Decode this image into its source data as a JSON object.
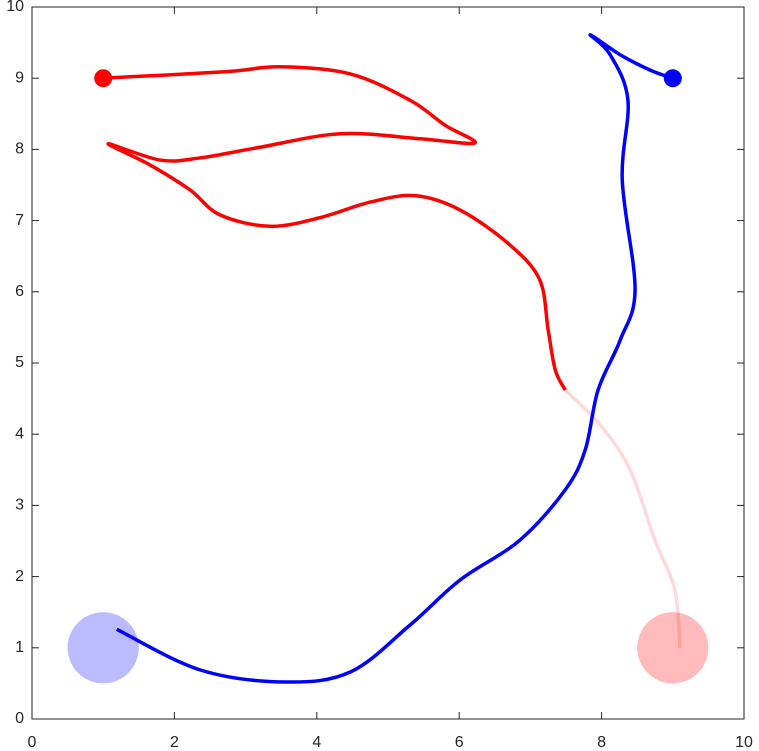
{
  "chart_data": {
    "type": "line",
    "xlim": [
      0,
      10
    ],
    "ylim": [
      0,
      10
    ],
    "xticks": [
      0,
      2,
      4,
      6,
      8,
      10
    ],
    "yticks": [
      0,
      1,
      2,
      3,
      4,
      5,
      6,
      7,
      8,
      9,
      10
    ],
    "series": [
      {
        "color": "#ff0000",
        "opacity": 1,
        "x": [
          0.97,
          2.71,
          3.48,
          4.47,
          5.31,
          5.8,
          6.22,
          5.45,
          4.33,
          3.2,
          2.36,
          1.8,
          1.07,
          1.66,
          2.22,
          2.64,
          3.34,
          4.04,
          4.75,
          5.38,
          6.01,
          6.71,
          7.13,
          7.25,
          7.35,
          7.49
        ],
        "y": [
          9.0,
          9.09,
          9.16,
          9.06,
          8.69,
          8.34,
          8.09,
          8.15,
          8.22,
          8.03,
          7.88,
          7.85,
          8.08,
          7.78,
          7.43,
          7.08,
          6.92,
          7.04,
          7.26,
          7.35,
          7.15,
          6.66,
          6.17,
          5.46,
          4.9,
          4.62
        ]
      },
      {
        "color": "#ff0000",
        "opacity": 0.15,
        "x": [
          7.49,
          7.98,
          8.4,
          8.75,
          9.03,
          9.1
        ],
        "y": [
          4.62,
          4.13,
          3.5,
          2.51,
          1.81,
          1.0
        ]
      },
      {
        "color": "#0000ff",
        "opacity": 1,
        "x": [
          9.0,
          8.69,
          8.26,
          7.84,
          8.12,
          8.37,
          8.29,
          8.47,
          8.26,
          7.95,
          7.77,
          7.49,
          6.85,
          6.01,
          5.31,
          4.47,
          3.55,
          2.36,
          1.19
        ],
        "y": [
          9.0,
          9.11,
          9.33,
          9.61,
          9.33,
          8.69,
          7.57,
          6.03,
          5.32,
          4.62,
          3.78,
          3.22,
          2.51,
          1.95,
          1.32,
          0.66,
          0.52,
          0.69,
          1.26
        ]
      }
    ],
    "markers": [
      {
        "x": 1,
        "y": 9,
        "color": "#ff0000"
      },
      {
        "x": 9,
        "y": 9,
        "color": "#0000ff"
      }
    ],
    "goals": [
      {
        "x": 1,
        "y": 1,
        "radius": 0.5,
        "color": "#bbbbff"
      },
      {
        "x": 9,
        "y": 1,
        "radius": 0.5,
        "color": "#ffbbbb"
      }
    ]
  }
}
